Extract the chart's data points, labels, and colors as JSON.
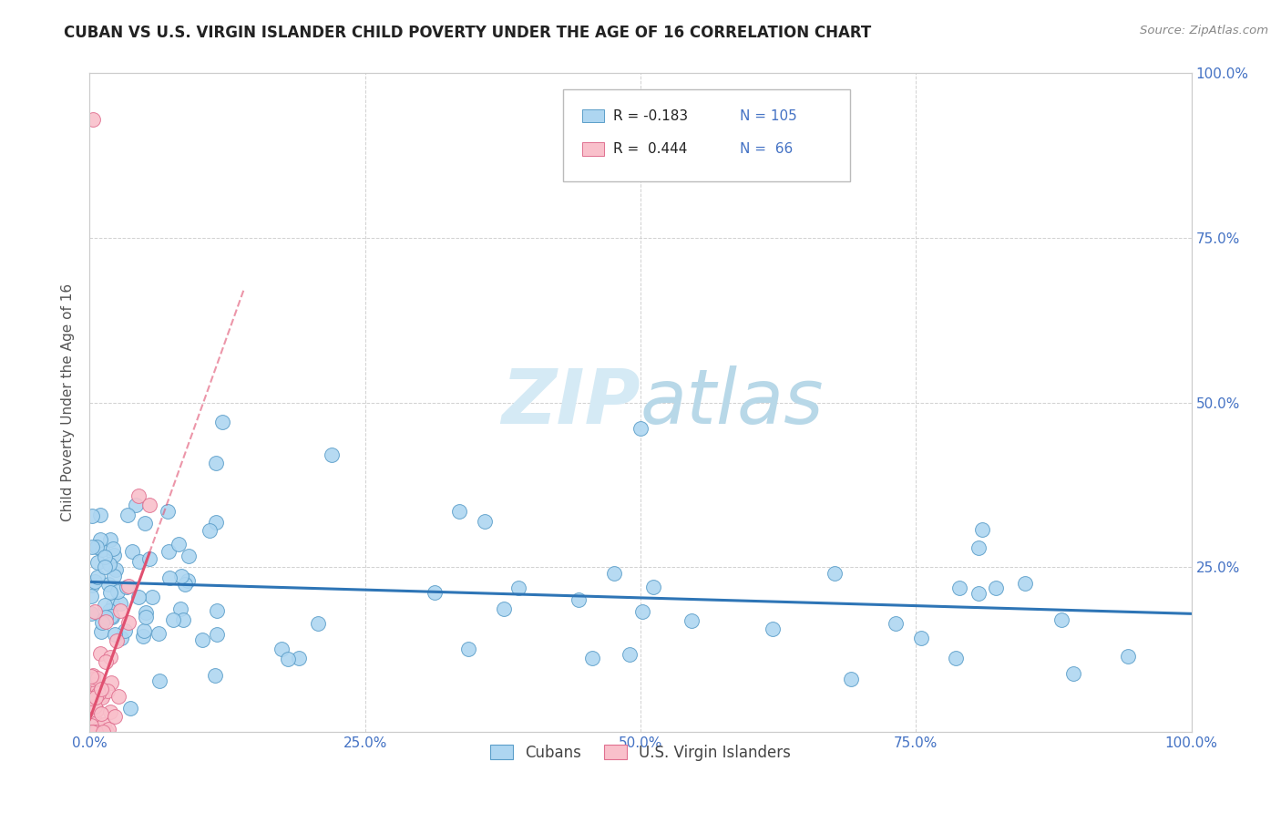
{
  "title": "CUBAN VS U.S. VIRGIN ISLANDER CHILD POVERTY UNDER THE AGE OF 16 CORRELATION CHART",
  "source": "Source: ZipAtlas.com",
  "ylabel": "Child Poverty Under the Age of 16",
  "xlim": [
    0.0,
    1.0
  ],
  "ylim": [
    0.0,
    1.0
  ],
  "xtick_vals": [
    0.0,
    0.25,
    0.5,
    0.75,
    1.0
  ],
  "xtick_labels": [
    "0.0%",
    "25.0%",
    "50.0%",
    "75.0%",
    "100.0%"
  ],
  "ytick_vals": [
    0.25,
    0.5,
    0.75,
    1.0
  ],
  "ytick_labels": [
    "25.0%",
    "50.0%",
    "75.0%",
    "100.0%"
  ],
  "cuban_color": "#aed6f1",
  "virgin_color": "#f9c0cb",
  "cuban_edge": "#5b9ec9",
  "virgin_edge": "#e07090",
  "trendline_cuban_color": "#2e75b6",
  "trendline_virgin_color": "#e05070",
  "watermark_color": "#d5eaf5",
  "grid_color": "#cccccc",
  "tick_color": "#4472c4",
  "title_color": "#222222",
  "source_color": "#888888",
  "ylabel_color": "#555555"
}
